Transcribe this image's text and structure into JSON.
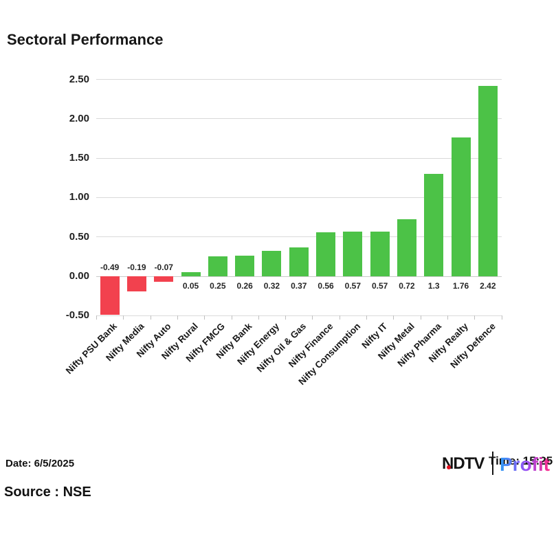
{
  "title": "Sectoral Performance",
  "chart_data": {
    "type": "bar",
    "title": "Sectoral Performance",
    "categories": [
      "Nifty PSU Bank",
      "Nifty Media",
      "Nifty Auto",
      "Nifty Rural",
      "Nifty FMCG",
      "Nifty Bank",
      "Nifty Energy",
      "Nifty Oil & Gas",
      "Nifty Finance",
      "Nifty Consumption",
      "Nifty IT",
      "Nifty Metal",
      "Nifty Pharma",
      "Nifty Realty",
      "Nifty Defence"
    ],
    "values": [
      -0.49,
      -0.19,
      -0.07,
      0.05,
      0.25,
      0.26,
      0.32,
      0.37,
      0.56,
      0.57,
      0.57,
      0.72,
      1.3,
      1.76,
      2.42
    ],
    "value_labels": [
      "-0.49",
      "-0.19",
      "-0.07",
      "0.05",
      "0.25",
      "0.26",
      "0.32",
      "0.37",
      "0.56",
      "0.57",
      "0.57",
      "0.72",
      "1.3",
      "1.76",
      "2.42"
    ],
    "xlabel": "",
    "ylabel": "",
    "ylim": [
      -0.5,
      2.5
    ],
    "ytick_labels": [
      "2.50",
      "2.00",
      "1.50",
      "1.00",
      "0.50",
      "0.00",
      "-0.50"
    ],
    "grid": true,
    "legend": false,
    "positive_color": "#4CC247",
    "negative_color": "#F2414E",
    "gridline_color": "#D9D9D9"
  },
  "footer": {
    "date": "Date: 6/5/2025",
    "source": "Source : NSE",
    "time": "Time: 15:25"
  },
  "logo": {
    "ndtv_text": "NDTV",
    "profit_text": "Profit",
    "dot_color": "#E4101E",
    "profit_gradient_start": "#2E9BF5",
    "profit_gradient_mid": "#9C4DF4",
    "profit_gradient_end": "#FF2D86"
  }
}
